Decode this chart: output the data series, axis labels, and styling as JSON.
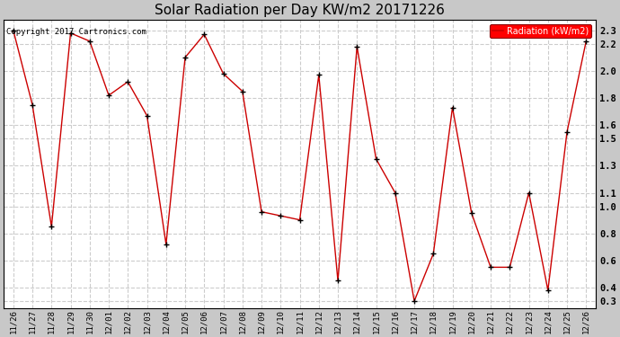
{
  "title": "Solar Radiation per Day KW/m2 20171226",
  "dates": [
    "11/26",
    "11/27",
    "11/28",
    "11/29",
    "11/30",
    "12/01",
    "12/02",
    "12/03",
    "12/04",
    "12/05",
    "12/06",
    "12/07",
    "12/08",
    "12/09",
    "12/10",
    "12/11",
    "12/12",
    "12/13",
    "12/14",
    "12/15",
    "12/16",
    "12/17",
    "12/18",
    "12/19",
    "12/20",
    "12/21",
    "12/22",
    "12/23",
    "12/24",
    "12/25",
    "12/26"
  ],
  "values": [
    2.3,
    1.75,
    0.85,
    2.28,
    2.22,
    1.82,
    1.92,
    1.67,
    0.72,
    2.1,
    2.27,
    1.98,
    1.85,
    0.96,
    0.93,
    0.9,
    1.97,
    0.45,
    2.18,
    1.35,
    1.1,
    0.3,
    0.65,
    1.73,
    0.95,
    0.55,
    0.55,
    1.1,
    0.38,
    1.55,
    2.22
  ],
  "line_color": "#cc0000",
  "marker_color": "#000000",
  "plot_bg_color": "#ffffff",
  "outer_bg_color": "#c8c8c8",
  "grid_color": "#cccccc",
  "ylabel_ticks": [
    0.3,
    0.4,
    0.6,
    0.8,
    1.0,
    1.1,
    1.3,
    1.5,
    1.6,
    1.8,
    2.0,
    2.2,
    2.3
  ],
  "legend_label": "Radiation (kW/m2)",
  "copyright_text": "Copyright 2017 Cartronics.com",
  "ylim_min": 0.25,
  "ylim_max": 2.38
}
